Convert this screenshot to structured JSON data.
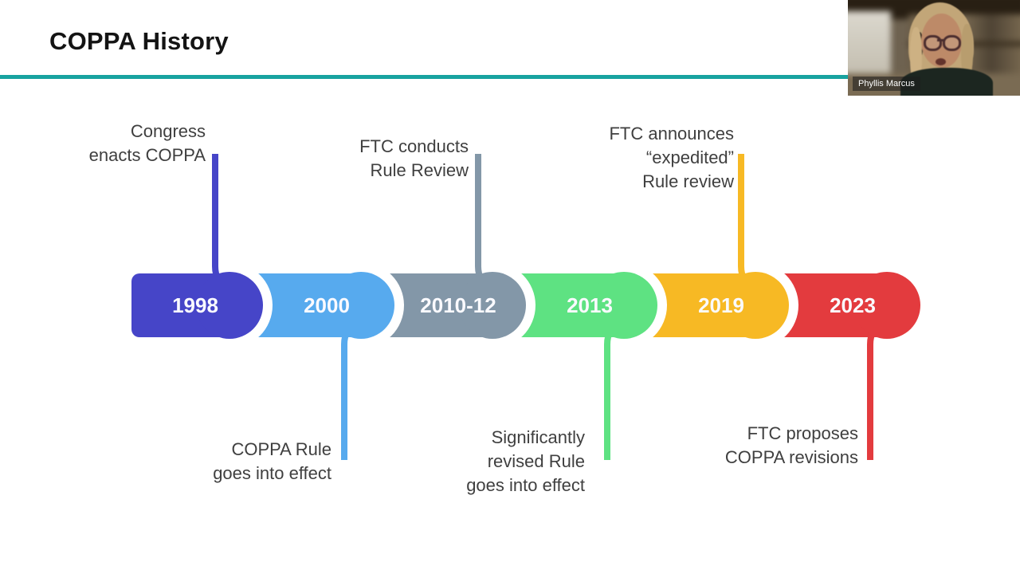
{
  "slide": {
    "title": "COPPA History",
    "accent_color": "#17a3a0",
    "background_color": "#ffffff"
  },
  "webcam": {
    "name_label": "Phyllis Marcus"
  },
  "timeline": {
    "label_color": "#3f3f3f",
    "year_text_color": "#fafaff",
    "segments": [
      {
        "year": "1998",
        "color": "#4645c8",
        "side": "up",
        "label": "Congress\nenacts COPPA"
      },
      {
        "year": "2000",
        "color": "#57aaee",
        "side": "down",
        "label": "COPPA Rule\ngoes into effect"
      },
      {
        "year": "2010-12",
        "color": "#8397a8",
        "side": "up",
        "label": "FTC conducts\nRule Review"
      },
      {
        "year": "2013",
        "color": "#5ee282",
        "side": "down",
        "label": "Significantly\nrevised Rule\ngoes into effect"
      },
      {
        "year": "2019",
        "color": "#f7b924",
        "side": "up",
        "label": "FTC announces\n“expedited”\nRule review"
      },
      {
        "year": "2023",
        "color": "#e33b3e",
        "side": "down",
        "label": "FTC proposes\nCOPPA revisions"
      }
    ]
  }
}
